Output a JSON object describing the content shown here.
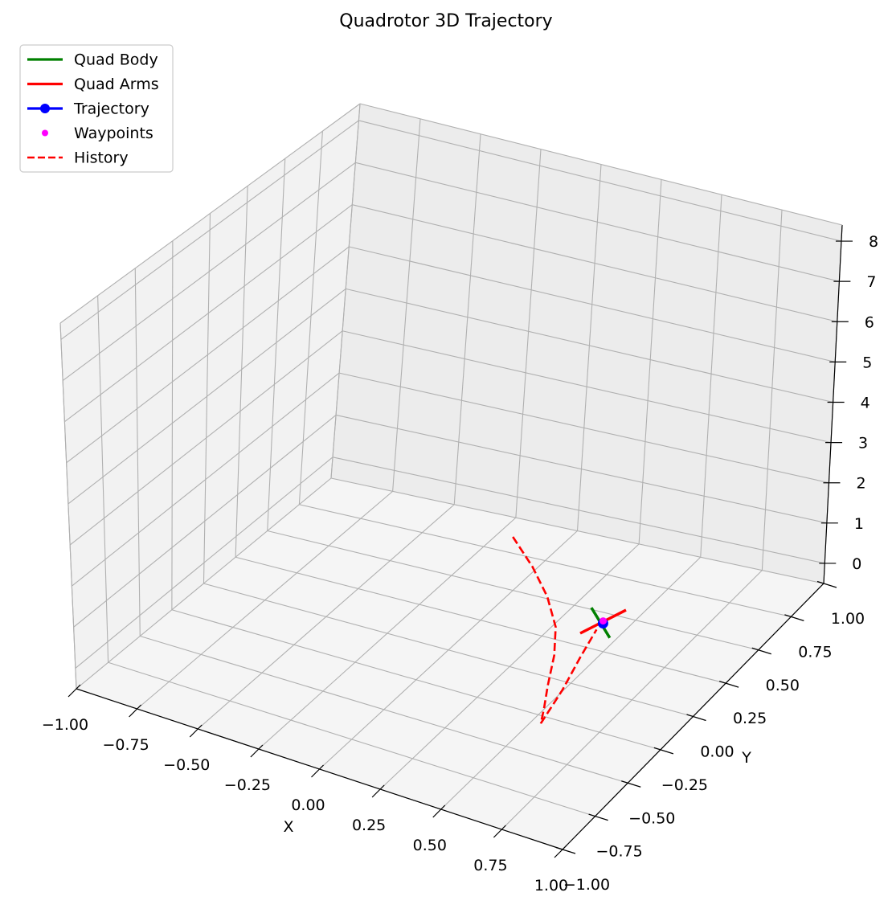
{
  "chart_data": {
    "type": "line3d",
    "title": "Quadrotor 3D Trajectory",
    "xlabel": "X",
    "ylabel": "Y",
    "zlabel": "",
    "xlim": [
      -1,
      1
    ],
    "ylim": [
      -1,
      1
    ],
    "zlim": [
      -0.5,
      8
    ],
    "x_ticks": [
      -1.0,
      -0.75,
      -0.5,
      -0.25,
      0.0,
      0.25,
      0.5,
      0.75,
      1.0
    ],
    "x_tick_labels": [
      "−1.00",
      "−0.75",
      "−0.50",
      "−0.25",
      "0.00",
      "0.25",
      "0.50",
      "0.75",
      "1.00"
    ],
    "y_ticks": [
      -1.0,
      -0.75,
      -0.5,
      -0.25,
      0.0,
      0.25,
      0.5,
      0.75,
      1.0
    ],
    "y_tick_labels": [
      "−1.00",
      "−0.75",
      "−0.50",
      "−0.25",
      "0.00",
      "0.25",
      "0.50",
      "0.75",
      "1.00"
    ],
    "z_ticks": [
      0,
      1,
      2,
      3,
      4,
      5,
      6,
      7,
      8
    ],
    "z_tick_labels": [
      "0",
      "1",
      "2",
      "3",
      "4",
      "5",
      "6",
      "7",
      "8"
    ],
    "grid": true,
    "legend": {
      "placement": "upper-left",
      "entries": [
        {
          "label": "Quad Body",
          "color": "#008000",
          "style": "solid"
        },
        {
          "label": "Quad Arms",
          "color": "#ff0000",
          "style": "solid"
        },
        {
          "label": "Trajectory",
          "color": "#0000ff",
          "style": "solid-marker"
        },
        {
          "label": "Waypoints",
          "color": "#ff00ff",
          "style": "marker"
        },
        {
          "label": "History",
          "color": "#ff0000",
          "style": "dashed"
        }
      ]
    },
    "series": [
      {
        "name": "History",
        "color": "#ff0000",
        "style": "dashed",
        "points": [
          [
            -0.12,
            0.72,
            0.0
          ],
          [
            0.05,
            0.55,
            0.0
          ],
          [
            0.2,
            0.38,
            0.0
          ],
          [
            0.33,
            0.2,
            0.0
          ],
          [
            0.42,
            0.02,
            0.0
          ],
          [
            0.5,
            -0.18,
            0.0
          ],
          [
            0.56,
            -0.32,
            0.0
          ],
          [
            0.6,
            -0.42,
            0.0
          ],
          [
            0.56,
            -0.18,
            0.0
          ],
          [
            0.51,
            0.05,
            0.0
          ],
          [
            0.47,
            0.25,
            0.0
          ]
        ]
      },
      {
        "name": "Quad Body",
        "color": "#008000",
        "style": "solid",
        "points": [
          [
            0.38,
            0.38,
            0.0
          ],
          [
            0.54,
            0.22,
            0.0
          ]
        ]
      },
      {
        "name": "Quad Arms",
        "color": "#ff0000",
        "style": "solid",
        "points": [
          [
            0.43,
            0.2,
            0.0
          ],
          [
            0.5,
            0.42,
            0.0
          ]
        ]
      },
      {
        "name": "Trajectory",
        "color": "#0000ff",
        "style": "solid-marker",
        "points": [
          [
            0.47,
            0.3,
            0.0
          ]
        ]
      },
      {
        "name": "Waypoints",
        "color": "#ff00ff",
        "style": "marker",
        "points": [
          [
            0.465,
            0.31,
            0.02
          ]
        ]
      }
    ]
  }
}
